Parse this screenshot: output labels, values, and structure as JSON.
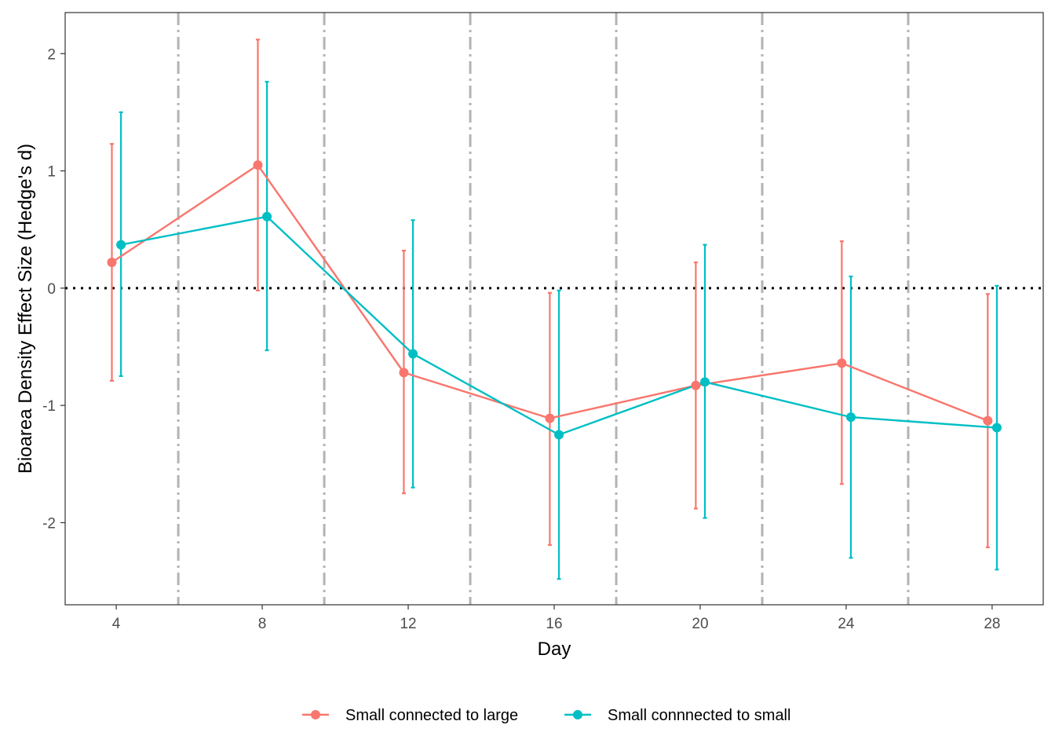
{
  "chart_data": {
    "type": "line",
    "xlabel": "Day",
    "ylabel": "Bioarea Density Effect Size (Hedge's d)",
    "xlim": [
      2.6,
      29.4
    ],
    "ylim": [
      -2.7,
      2.35
    ],
    "x_ticks": [
      4,
      8,
      12,
      16,
      20,
      24,
      28
    ],
    "y_ticks": [
      -2,
      -1,
      0,
      1,
      2
    ],
    "x_tick_labels": [
      "4",
      "8",
      "12",
      "16",
      "20",
      "24",
      "28"
    ],
    "y_tick_labels": [
      "-2",
      "-1",
      "0",
      "1",
      "2"
    ],
    "reference_line": {
      "y": 0,
      "style": "dotted",
      "color": "#000000"
    },
    "vertical_lines": {
      "x": [
        5.7,
        9.7,
        13.7,
        17.7,
        21.7,
        25.7
      ],
      "style": "dashdot",
      "color": "#b3b3b3"
    },
    "legend": {
      "position": "bottom"
    },
    "series": [
      {
        "name": "Small connected to large",
        "color": "#F8766D",
        "points": [
          {
            "x": 3.88,
            "y": 0.22,
            "ymin": -0.79,
            "ymax": 1.23
          },
          {
            "x": 7.88,
            "y": 1.05,
            "ymin": -0.02,
            "ymax": 2.12
          },
          {
            "x": 11.88,
            "y": -0.72,
            "ymin": -1.75,
            "ymax": 0.32
          },
          {
            "x": 15.88,
            "y": -1.11,
            "ymin": -2.19,
            "ymax": -0.04
          },
          {
            "x": 19.88,
            "y": -0.83,
            "ymin": -1.88,
            "ymax": 0.22
          },
          {
            "x": 23.88,
            "y": -0.64,
            "ymin": -1.67,
            "ymax": 0.4
          },
          {
            "x": 27.88,
            "y": -1.13,
            "ymin": -2.21,
            "ymax": -0.05
          }
        ]
      },
      {
        "name": "Small connnected to small",
        "color": "#00BFC4",
        "points": [
          {
            "x": 4.13,
            "y": 0.37,
            "ymin": -0.75,
            "ymax": 1.5
          },
          {
            "x": 8.13,
            "y": 0.61,
            "ymin": -0.53,
            "ymax": 1.76
          },
          {
            "x": 12.13,
            "y": -0.56,
            "ymin": -1.7,
            "ymax": 0.58
          },
          {
            "x": 16.13,
            "y": -1.25,
            "ymin": -2.48,
            "ymax": -0.02
          },
          {
            "x": 20.13,
            "y": -0.8,
            "ymin": -1.96,
            "ymax": 0.37
          },
          {
            "x": 24.13,
            "y": -1.1,
            "ymin": -2.3,
            "ymax": 0.1
          },
          {
            "x": 28.13,
            "y": -1.19,
            "ymin": -2.4,
            "ymax": 0.02
          }
        ]
      }
    ]
  }
}
